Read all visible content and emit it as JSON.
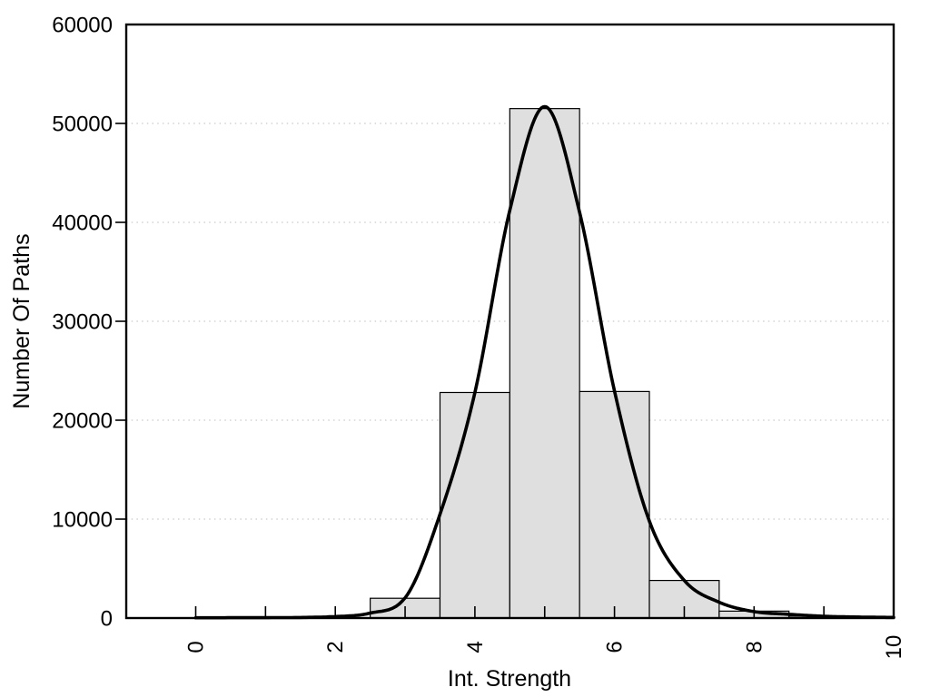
{
  "chart_data": {
    "type": "bar",
    "subtype": "histogram-with-fit-curve",
    "title": "",
    "xlabel": "Int. Strength",
    "ylabel": "Number Of Paths",
    "xlim": [
      -1,
      10
    ],
    "ylim": [
      0,
      60000
    ],
    "grid": "horizontal-dotted",
    "legend": "none",
    "x_axis": {
      "tick_mark_positions": [
        0,
        1,
        2,
        3,
        4,
        5,
        6,
        7,
        8,
        9,
        10
      ],
      "labeled_ticks": [
        {
          "value": 0,
          "label": "0"
        },
        {
          "value": 2,
          "label": "2"
        },
        {
          "value": 4,
          "label": "4"
        },
        {
          "value": 6,
          "label": "6"
        },
        {
          "value": 8,
          "label": "8"
        },
        {
          "value": 10,
          "label": "10"
        }
      ],
      "label_rotation_deg": -90
    },
    "y_axis": {
      "tick_mark_positions": [
        10000,
        20000,
        30000,
        40000,
        50000
      ],
      "labeled_ticks": [
        {
          "value": 0,
          "label": "0"
        },
        {
          "value": 10000,
          "label": "10000"
        },
        {
          "value": 20000,
          "label": "20000"
        },
        {
          "value": 30000,
          "label": "30000"
        },
        {
          "value": 40000,
          "label": "40000"
        },
        {
          "value": 50000,
          "label": "50000"
        },
        {
          "value": 60000,
          "label": "60000"
        }
      ]
    },
    "gridline_values": [
      10000,
      20000,
      30000,
      40000,
      50000
    ],
    "histogram": {
      "bin_width": 1,
      "bins": [
        {
          "center": 3,
          "count": 2000
        },
        {
          "center": 4,
          "count": 22800
        },
        {
          "center": 5,
          "count": 51500
        },
        {
          "center": 6,
          "count": 22900
        },
        {
          "center": 7,
          "count": 3800
        },
        {
          "center": 8,
          "count": 700
        },
        {
          "center": 9,
          "count": 200
        }
      ]
    },
    "fit_curve": {
      "description": "smooth bell-shaped fit through bin tops",
      "x": [
        0,
        1,
        2,
        2.5,
        3,
        3.5,
        4,
        4.5,
        5,
        5.5,
        6,
        6.5,
        7,
        7.5,
        8,
        8.5,
        9,
        9.5,
        10
      ],
      "y": [
        30,
        40,
        150,
        500,
        2050,
        10500,
        22800,
        41200,
        51700,
        41000,
        22950,
        9800,
        3800,
        1600,
        650,
        380,
        180,
        100,
        60
      ]
    },
    "colors": {
      "background": "#ffffff",
      "bar_fill": "#dfdfdf",
      "bar_border": "#000000",
      "curve": "#000000",
      "gridline": "#bdbdbd",
      "axis": "#000000",
      "text": "#000000"
    }
  }
}
